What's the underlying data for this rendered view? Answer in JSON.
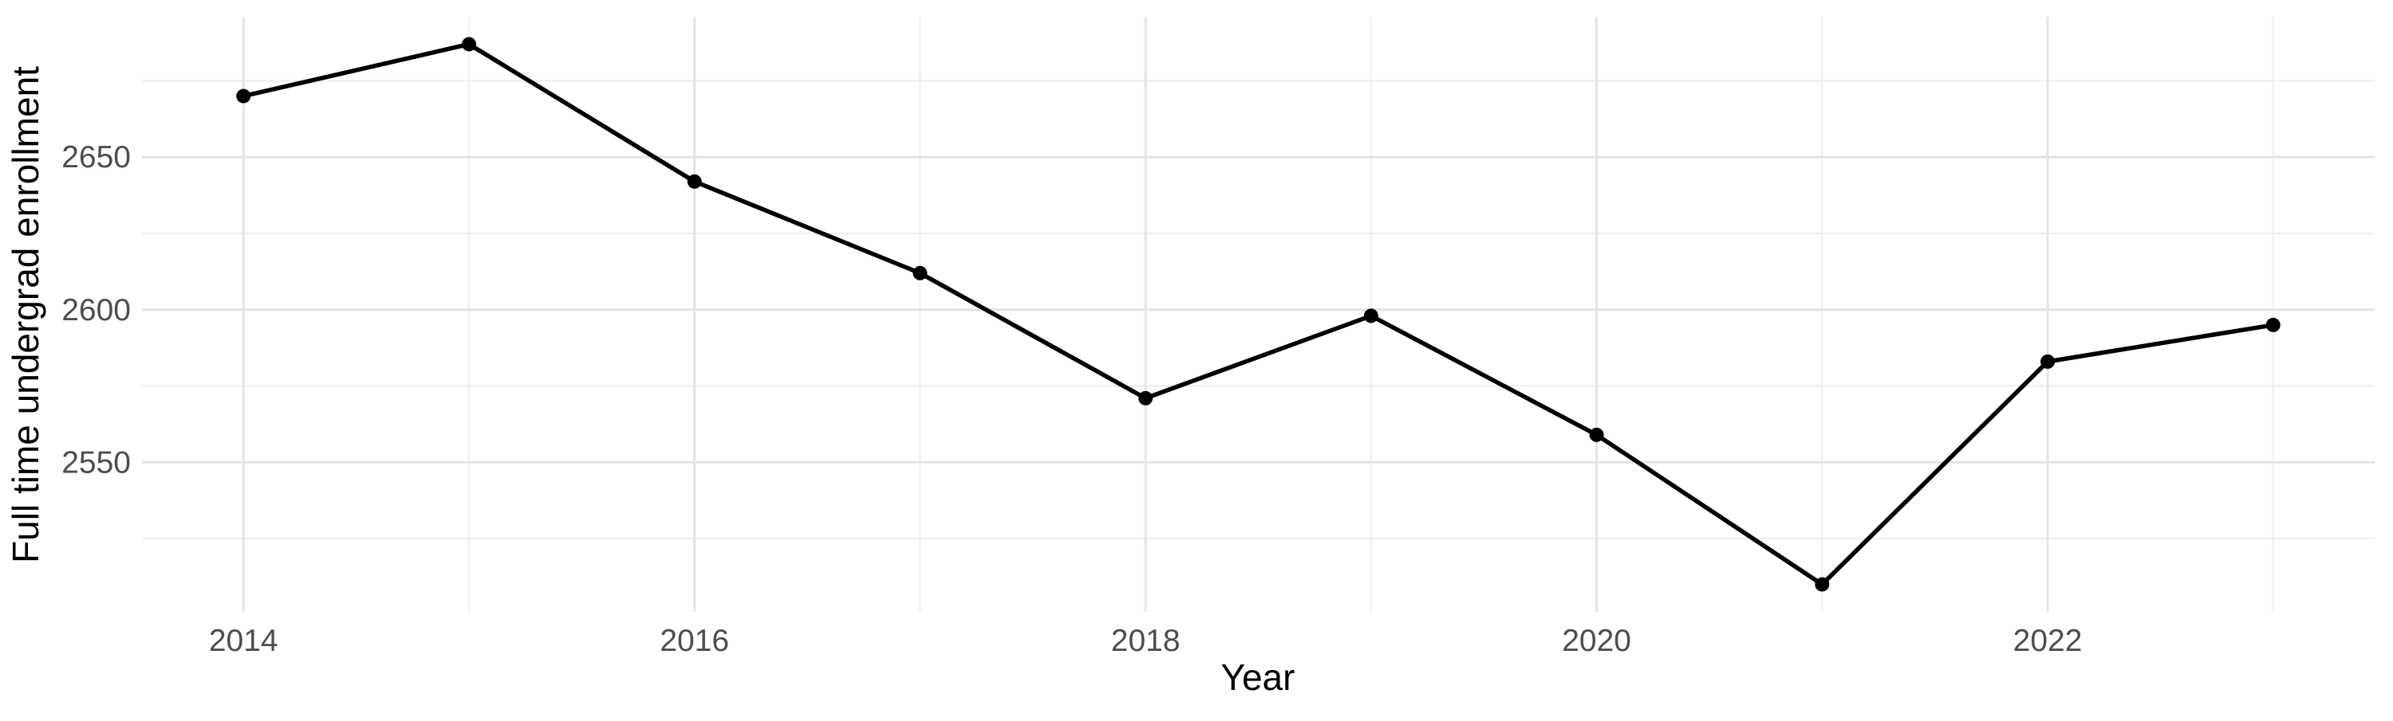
{
  "chart_data": {
    "type": "line",
    "x": [
      2014,
      2015,
      2016,
      2017,
      2018,
      2019,
      2020,
      2021,
      2022,
      2023
    ],
    "series": [
      {
        "name": "Full time undergrad enrollment",
        "values": [
          2670,
          2687,
          2642,
          2612,
          2571,
          2598,
          2559,
          2510,
          2583,
          2595
        ]
      }
    ],
    "title": "",
    "xlabel": "Year",
    "ylabel": "Full time undergrad enrollment",
    "x_major_ticks": [
      2014,
      2016,
      2018,
      2020,
      2022
    ],
    "x_minor_ticks": [
      2015,
      2017,
      2019,
      2021,
      2023
    ],
    "y_major_ticks": [
      2550,
      2600,
      2650
    ],
    "y_minor_ticks": [
      2525,
      2575,
      2625,
      2675
    ],
    "xlim": [
      2013.55,
      2023.45
    ],
    "ylim": [
      2501,
      2696
    ],
    "grid": true,
    "legend": "none",
    "point_marker": "filled-circle",
    "colors": {
      "line": "#000000",
      "point": "#000000",
      "grid_major": "#e4e4e4",
      "grid_minor": "#efefef",
      "tick_label": "#4d4d4d",
      "axis_title": "#000000",
      "background": "#ffffff"
    }
  }
}
